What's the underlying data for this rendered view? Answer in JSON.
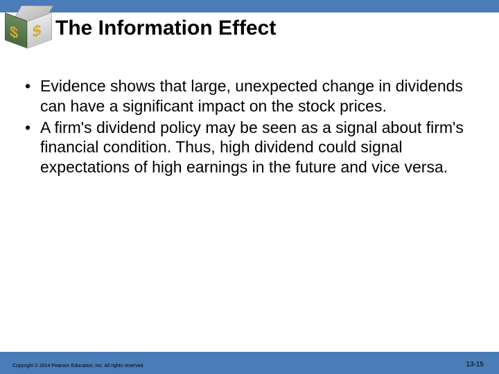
{
  "slide": {
    "title": "The Information Effect",
    "bullets": [
      "Evidence shows that large, unexpected change in dividends can have a significant impact on the stock prices.",
      "A firm's dividend policy may be seen as a signal about firm's financial condition. Thus, high dividend could signal expectations of high earnings in the future and vice versa."
    ],
    "copyright": "Copyright © 2014 Pearson Education, Inc. All rights reserved.",
    "page_number": "13-15"
  },
  "colors": {
    "bar": "#4a7cb8",
    "text": "#000000",
    "background": "#ffffff"
  }
}
